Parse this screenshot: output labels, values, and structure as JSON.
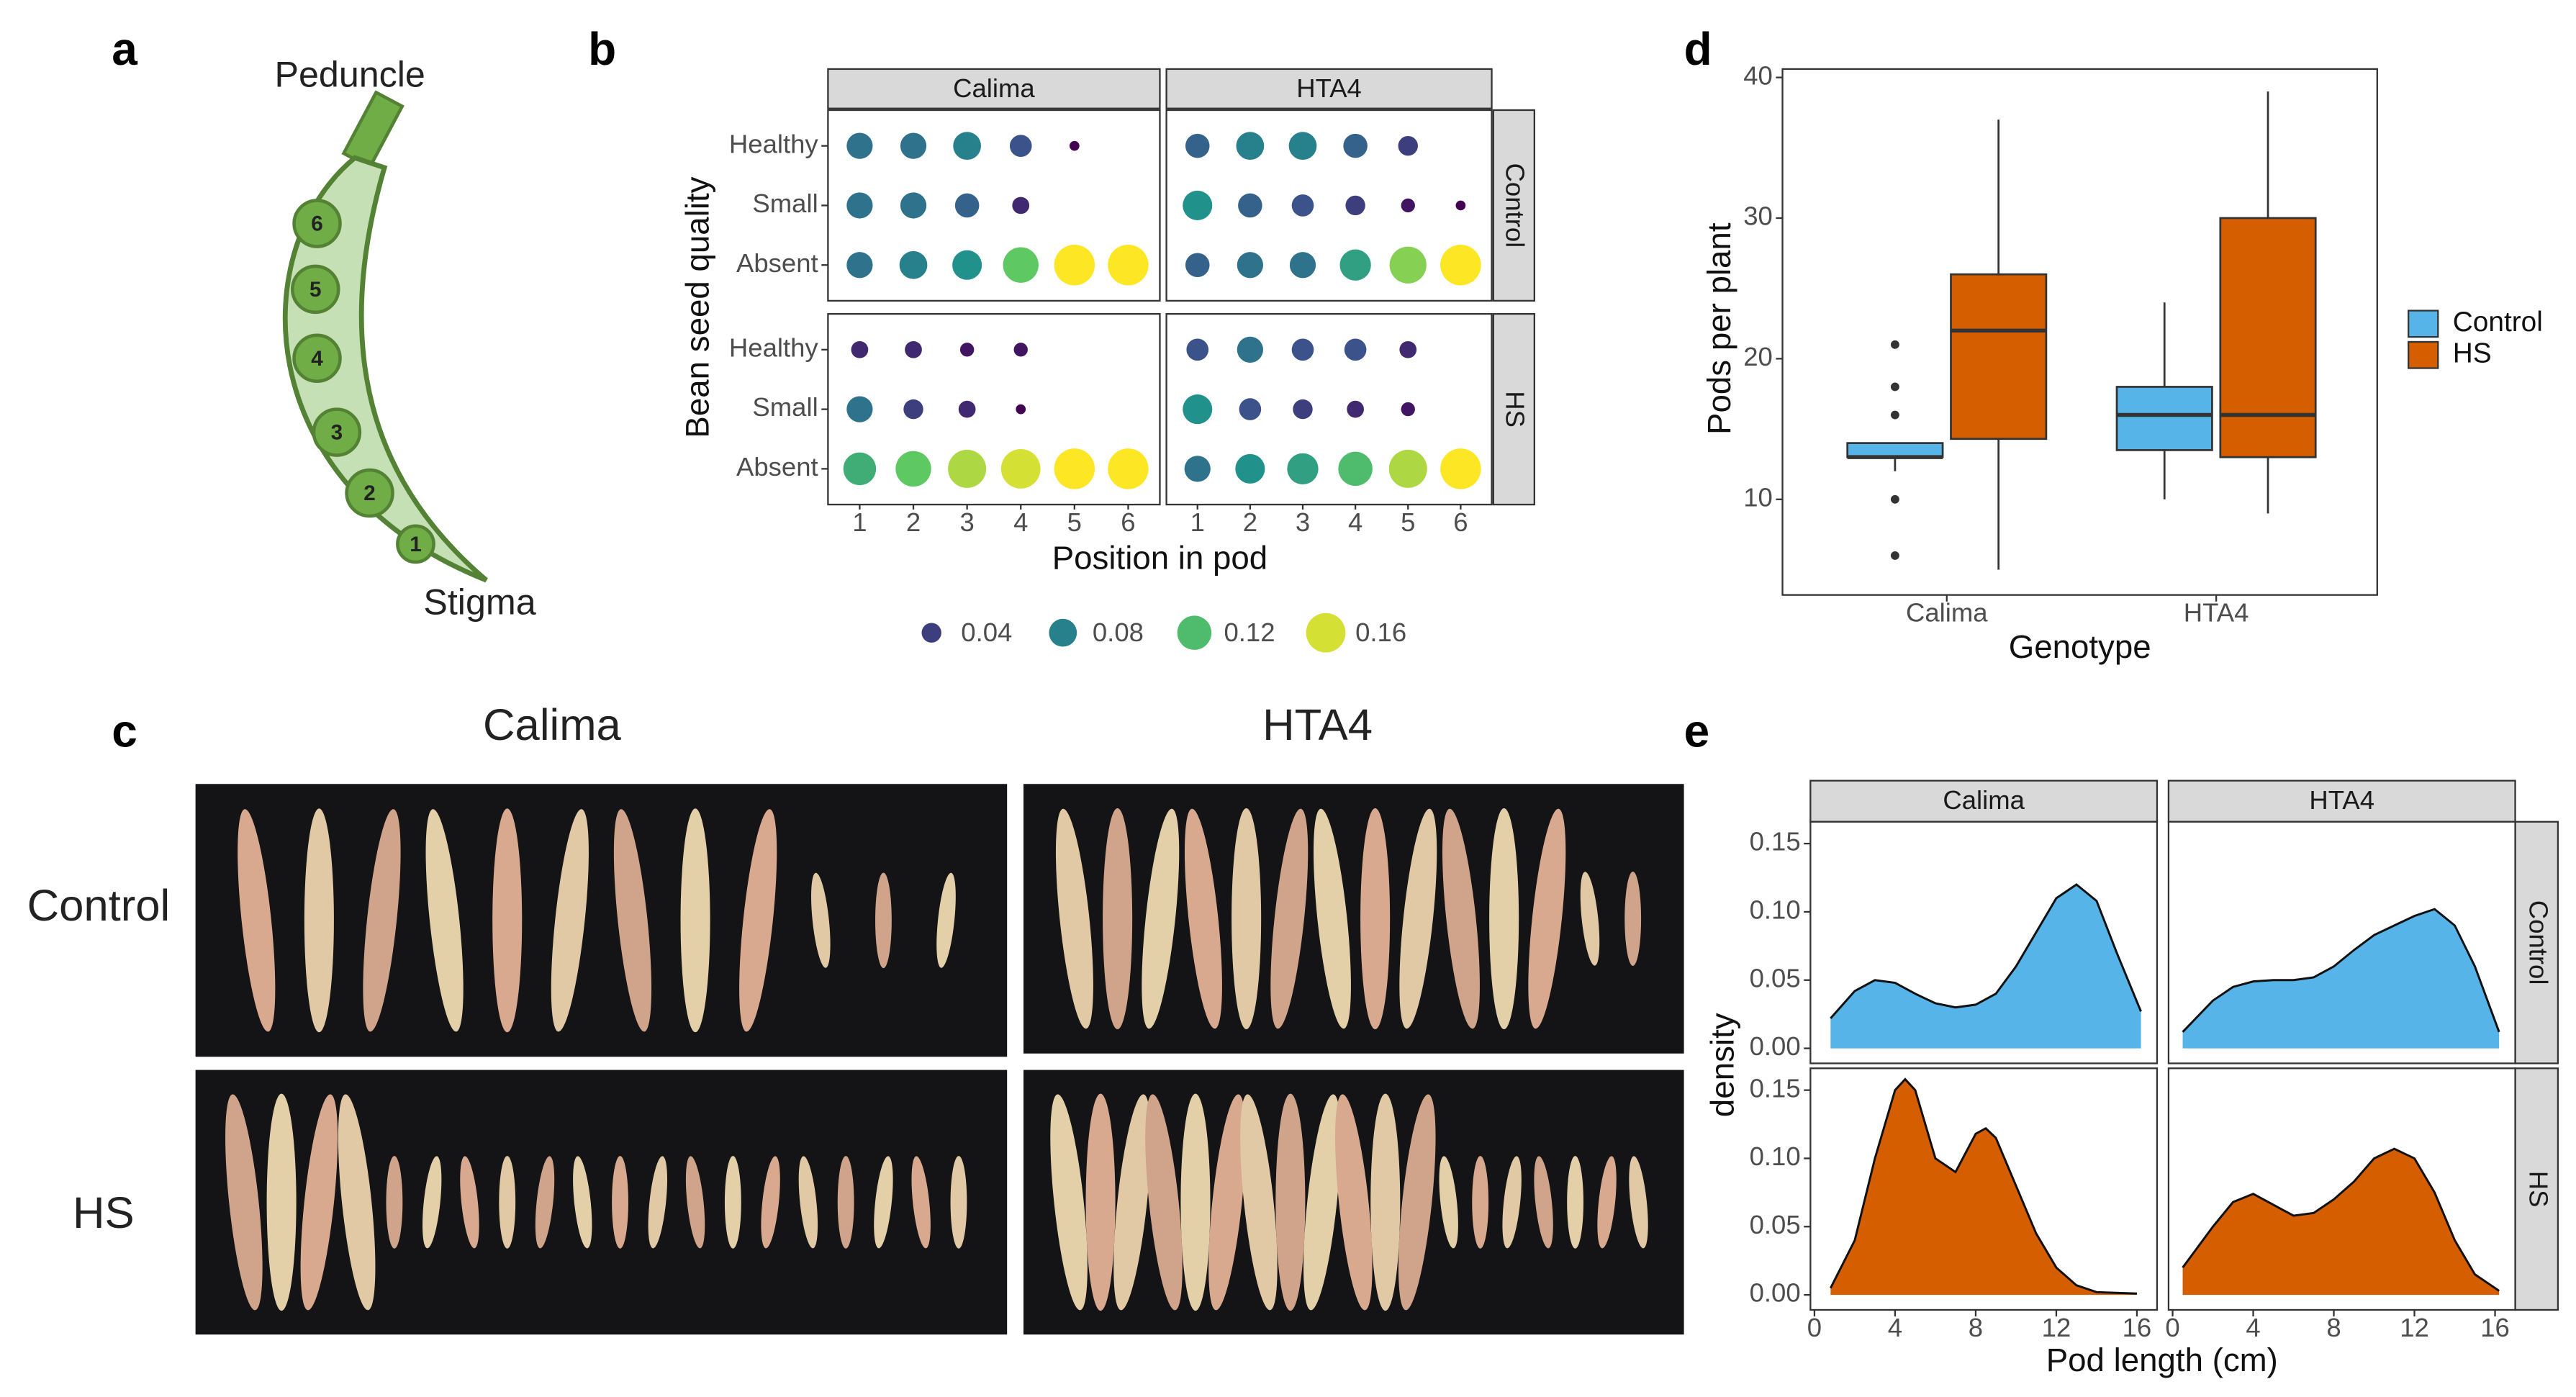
{
  "panel_a": {
    "label": "a",
    "top_label": "Peduncle",
    "bottom_label": "Stigma",
    "seeds": [
      "1",
      "2",
      "3",
      "4",
      "5",
      "6"
    ]
  },
  "panel_c": {
    "label": "c",
    "columns": [
      "Calima",
      "HTA4"
    ],
    "rows": [
      "Control",
      "HS"
    ]
  },
  "chart_data": [
    {
      "type": "dot",
      "label": "b",
      "columns": [
        "Calima",
        "HTA4"
      ],
      "rows": [
        "Control",
        "HS"
      ],
      "categories": [
        "Healthy",
        "Small",
        "Absent"
      ],
      "x": [
        1,
        2,
        3,
        4,
        5,
        6
      ],
      "xlim": [
        0.41,
        6.59
      ],
      "xticks": [
        1,
        2,
        3,
        4,
        5,
        6
      ],
      "xlabel": "Position in pod",
      "ylabel": "Bean seed quality",
      "colormap": "viridis",
      "legend": {
        "position": "bottom",
        "values": [
          0.04,
          0.08,
          0.12,
          0.16
        ]
      },
      "values": [
        [
          [
            [
              0.07,
              0.07,
              0.08,
              0.05,
              0.01,
              null
            ],
            [
              0.07,
              0.07,
              0.06,
              0.03,
              null,
              null
            ],
            [
              0.07,
              0.08,
              0.09,
              0.13,
              0.17,
              0.17
            ]
          ],
          [
            [
              0.06,
              0.08,
              0.08,
              0.06,
              0.04,
              null
            ],
            [
              0.09,
              0.06,
              0.05,
              0.04,
              0.02,
              0.01
            ],
            [
              0.06,
              0.07,
              0.07,
              0.1,
              0.14,
              0.17
            ]
          ]
        ],
        [
          [
            [
              0.03,
              0.03,
              0.02,
              0.02,
              null,
              null
            ],
            [
              0.07,
              0.04,
              0.03,
              0.01,
              null,
              null
            ],
            [
              0.11,
              0.13,
              0.15,
              0.16,
              0.17,
              0.17
            ]
          ],
          [
            [
              0.05,
              0.07,
              0.05,
              0.05,
              0.03,
              null
            ],
            [
              0.09,
              0.05,
              0.04,
              0.03,
              0.02,
              null
            ],
            [
              0.07,
              0.09,
              0.1,
              0.12,
              0.15,
              0.17
            ]
          ]
        ]
      ]
    },
    {
      "type": "box",
      "label": "d",
      "categories": [
        "Calima",
        "HTA4"
      ],
      "xlabel": "Genotype",
      "ylabel": "Pods per plant",
      "ylim": [
        3.2,
        40.6
      ],
      "yticks": [
        10,
        20,
        30,
        40
      ],
      "legend": "right",
      "series": [
        {
          "name": "Control",
          "color": "#56B4E9",
          "boxes": [
            {
              "whislo": 12,
              "q1": 13,
              "med": 13,
              "q3": 14,
              "whishi": 14,
              "fliers": [
                6,
                10,
                16,
                18,
                21
              ]
            },
            {
              "whislo": 10,
              "q1": 13.5,
              "med": 16,
              "q3": 18,
              "whishi": 24,
              "fliers": []
            }
          ]
        },
        {
          "name": "HS",
          "color": "#D55E00",
          "boxes": [
            {
              "whislo": 5,
              "q1": 14.3,
              "med": 22,
              "q3": 26,
              "whishi": 37,
              "fliers": []
            },
            {
              "whislo": 9,
              "q1": 13,
              "med": 16,
              "q3": 30,
              "whishi": 39,
              "fliers": []
            }
          ]
        }
      ]
    },
    {
      "type": "density",
      "label": "e",
      "columns": [
        "Calima",
        "HTA4"
      ],
      "xlabel": "Pod length (cm)",
      "ylabel": "density",
      "xlim": [
        -0.2,
        17
      ],
      "xticks": [
        0,
        4,
        8,
        12,
        16
      ],
      "ylim": [
        -0.011,
        0.166
      ],
      "yticks": [
        {
          "value": 0,
          "label": "0.00"
        },
        {
          "value": 0.05,
          "label": "0.05"
        },
        {
          "value": 0.1,
          "label": "0.10"
        },
        {
          "value": 0.15,
          "label": "0.15"
        }
      ],
      "series": [
        {
          "name": "Control",
          "color": "#56B4E9",
          "facets": [
            {
              "x": [
                0.8,
                2,
                3,
                4,
                5,
                6,
                7,
                8,
                9,
                10,
                11,
                12,
                13,
                14,
                15,
                16.2
              ],
              "values": [
                0.022,
                0.042,
                0.05,
                0.048,
                0.04,
                0.033,
                0.03,
                0.032,
                0.04,
                0.06,
                0.085,
                0.11,
                0.12,
                0.108,
                0.07,
                0.027
              ]
            },
            {
              "x": [
                0.5,
                2,
                3,
                4,
                5,
                6,
                7,
                8,
                9,
                10,
                11,
                12,
                13,
                14,
                15,
                16.2
              ],
              "values": [
                0.012,
                0.035,
                0.045,
                0.049,
                0.05,
                0.05,
                0.052,
                0.06,
                0.072,
                0.083,
                0.09,
                0.097,
                0.102,
                0.09,
                0.06,
                0.012
              ]
            }
          ]
        },
        {
          "name": "HS",
          "color": "#D55E00",
          "facets": [
            {
              "x": [
                0.8,
                2,
                3,
                4,
                4.5,
                5,
                6,
                7,
                8,
                8.5,
                9,
                10,
                11,
                12,
                13,
                14,
                16
              ],
              "values": [
                0.005,
                0.04,
                0.1,
                0.15,
                0.158,
                0.15,
                0.1,
                0.09,
                0.118,
                0.122,
                0.115,
                0.08,
                0.045,
                0.02,
                0.007,
                0.002,
                0.001
              ]
            },
            {
              "x": [
                0.5,
                2,
                3,
                4,
                5,
                6,
                7,
                8,
                9,
                10,
                11,
                12,
                13,
                14,
                15,
                16.2
              ],
              "values": [
                0.02,
                0.05,
                0.068,
                0.074,
                0.066,
                0.058,
                0.06,
                0.07,
                0.083,
                0.1,
                0.107,
                0.1,
                0.075,
                0.04,
                0.015,
                0.003
              ]
            }
          ]
        }
      ]
    }
  ]
}
